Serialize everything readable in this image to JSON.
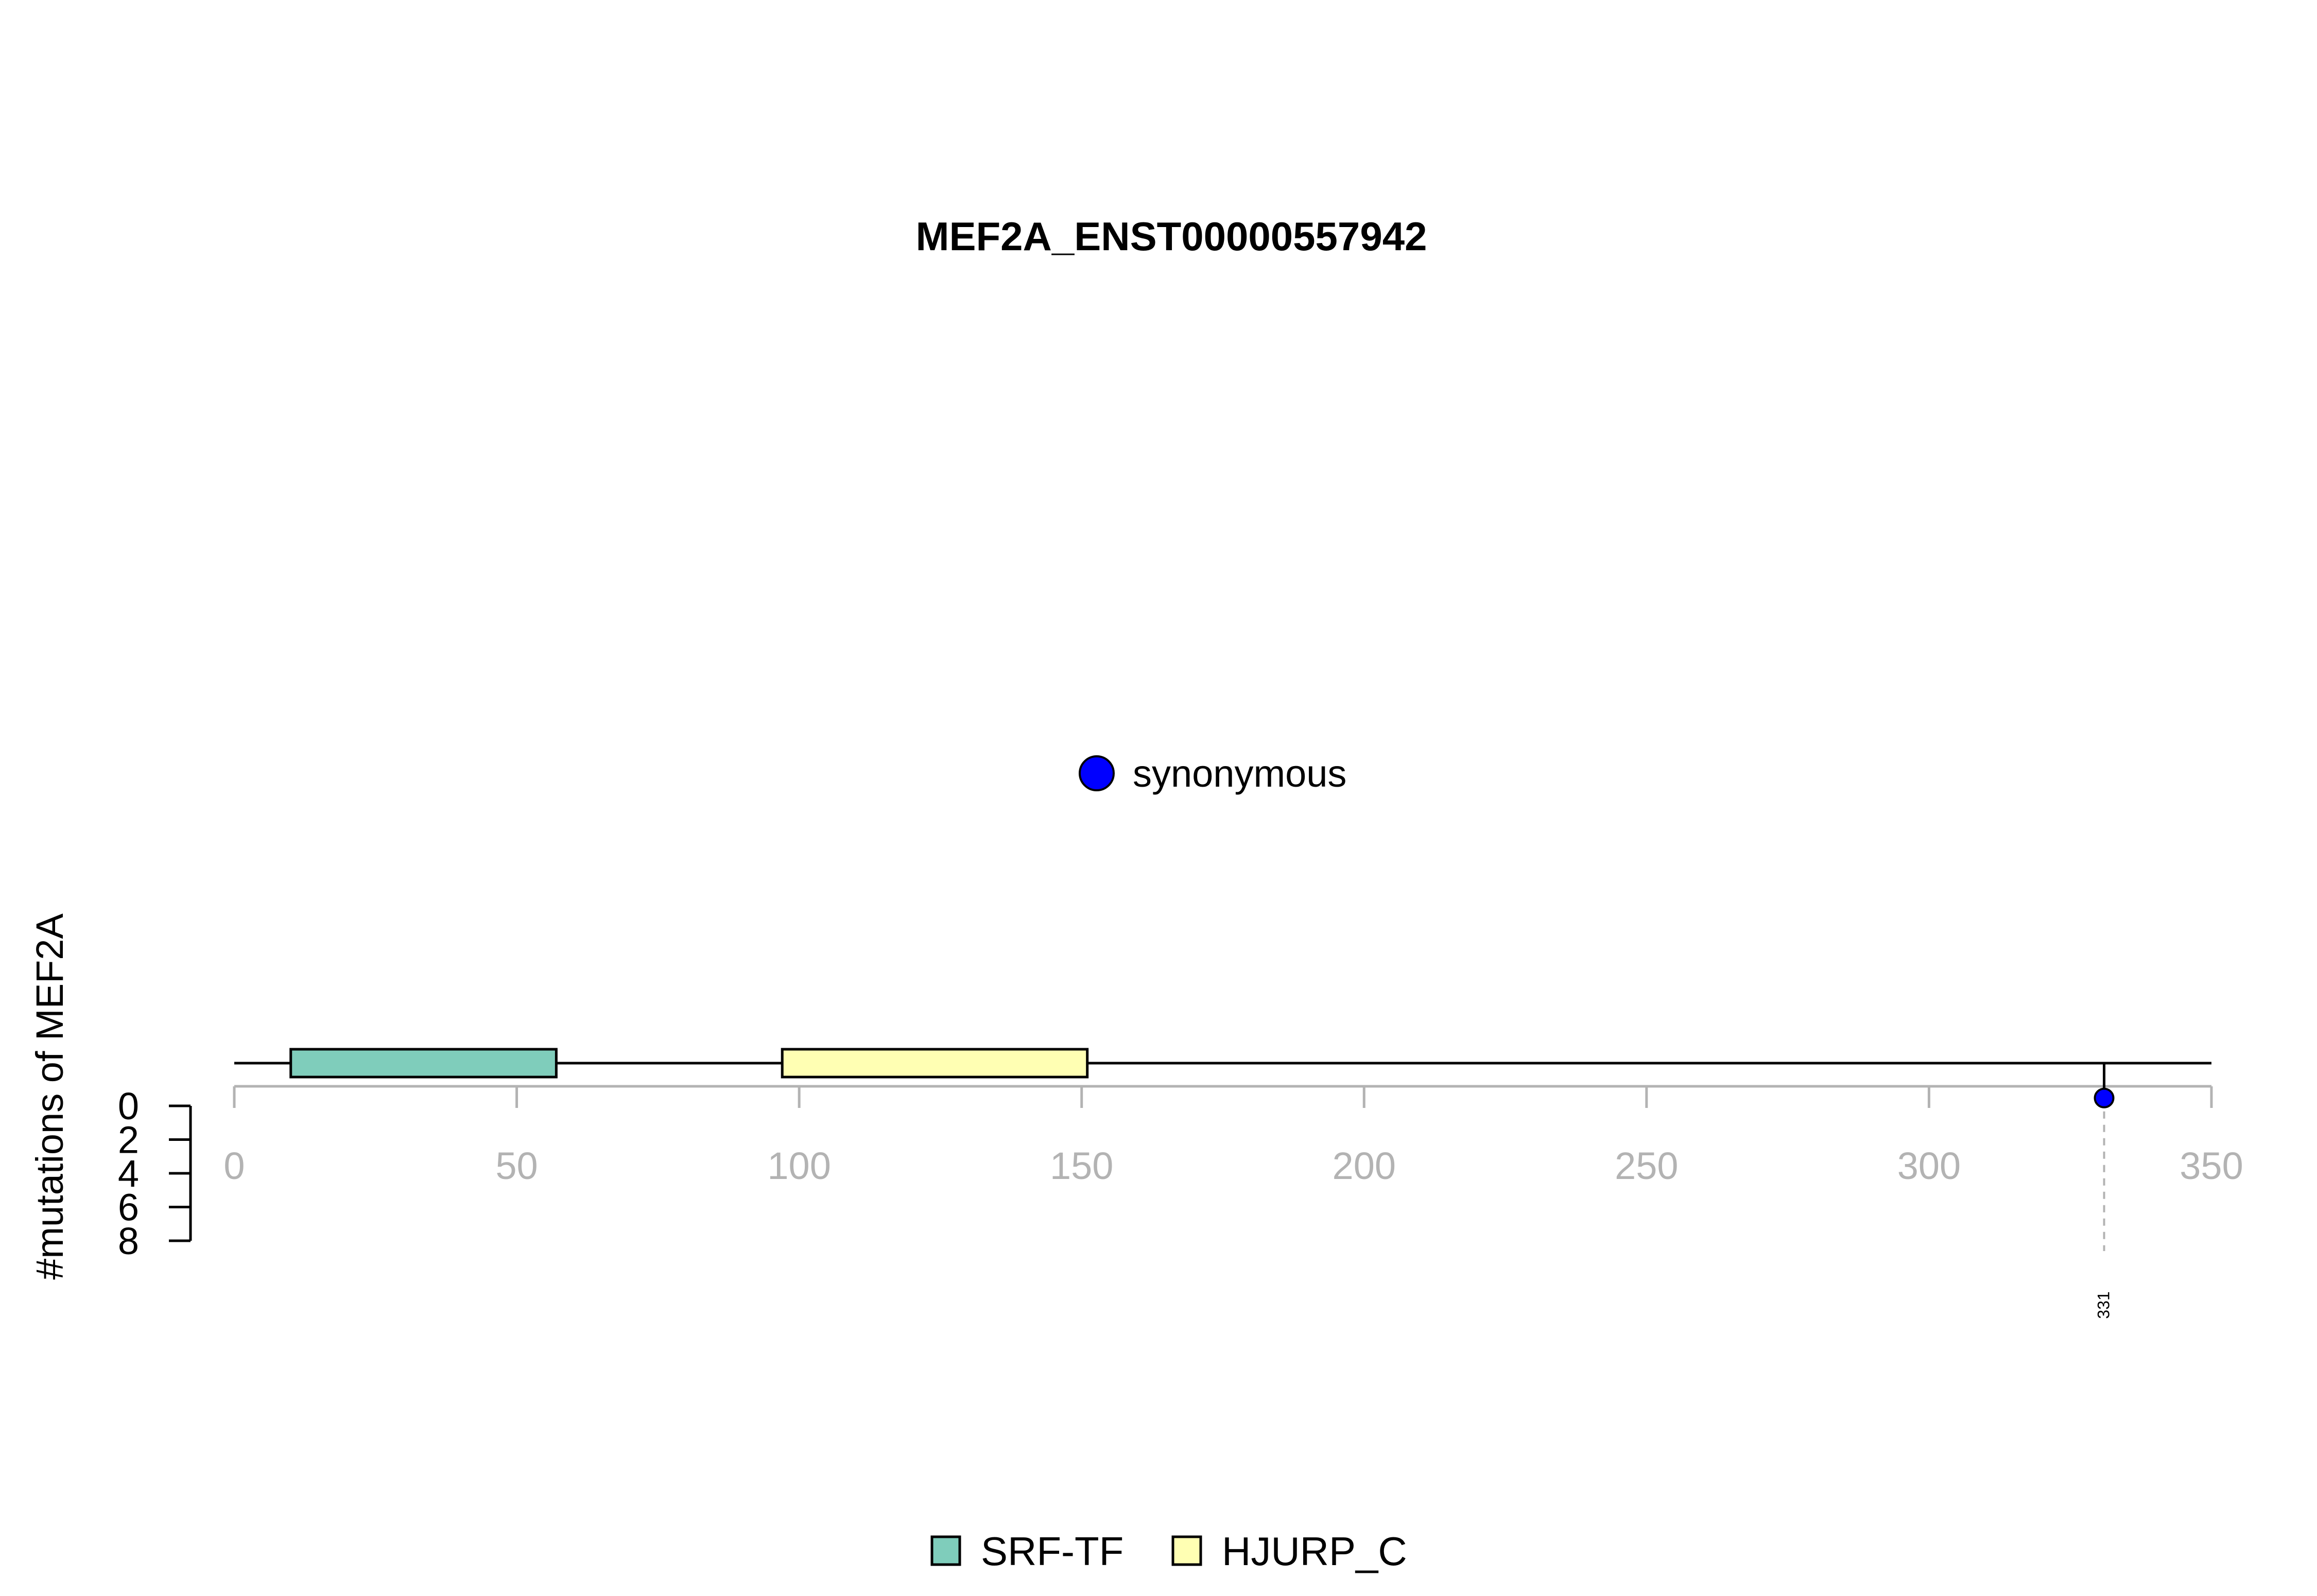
{
  "chart_data": {
    "type": "lollipop",
    "title": "MEF2A_ENST00000557942",
    "ylabel": "#mutations of MEF2A",
    "xlim": [
      0,
      350
    ],
    "x_ticks": [
      0,
      50,
      100,
      150,
      200,
      250,
      300,
      350
    ],
    "ylim": [
      0,
      8
    ],
    "y_ticks": [
      0,
      2,
      4,
      6,
      8
    ],
    "y_direction": "downward",
    "protein_length": 350,
    "domains": [
      {
        "name": "SRF-TF",
        "start": 10,
        "end": 57,
        "color": "#7fcdbb"
      },
      {
        "name": "HJURP_C",
        "start": 97,
        "end": 151,
        "color": "#ffffb3"
      }
    ],
    "mutations": [
      {
        "position": 331,
        "count": 1,
        "type": "synonymous",
        "label": "331",
        "color": "#0000ff"
      }
    ],
    "mutation_legend": [
      {
        "label": "synonymous",
        "color": "#0000ff"
      }
    ],
    "domain_legend": [
      {
        "label": "SRF-TF",
        "color": "#7fcdbb"
      },
      {
        "label": "HJURP_C",
        "color": "#ffffb3"
      }
    ]
  }
}
